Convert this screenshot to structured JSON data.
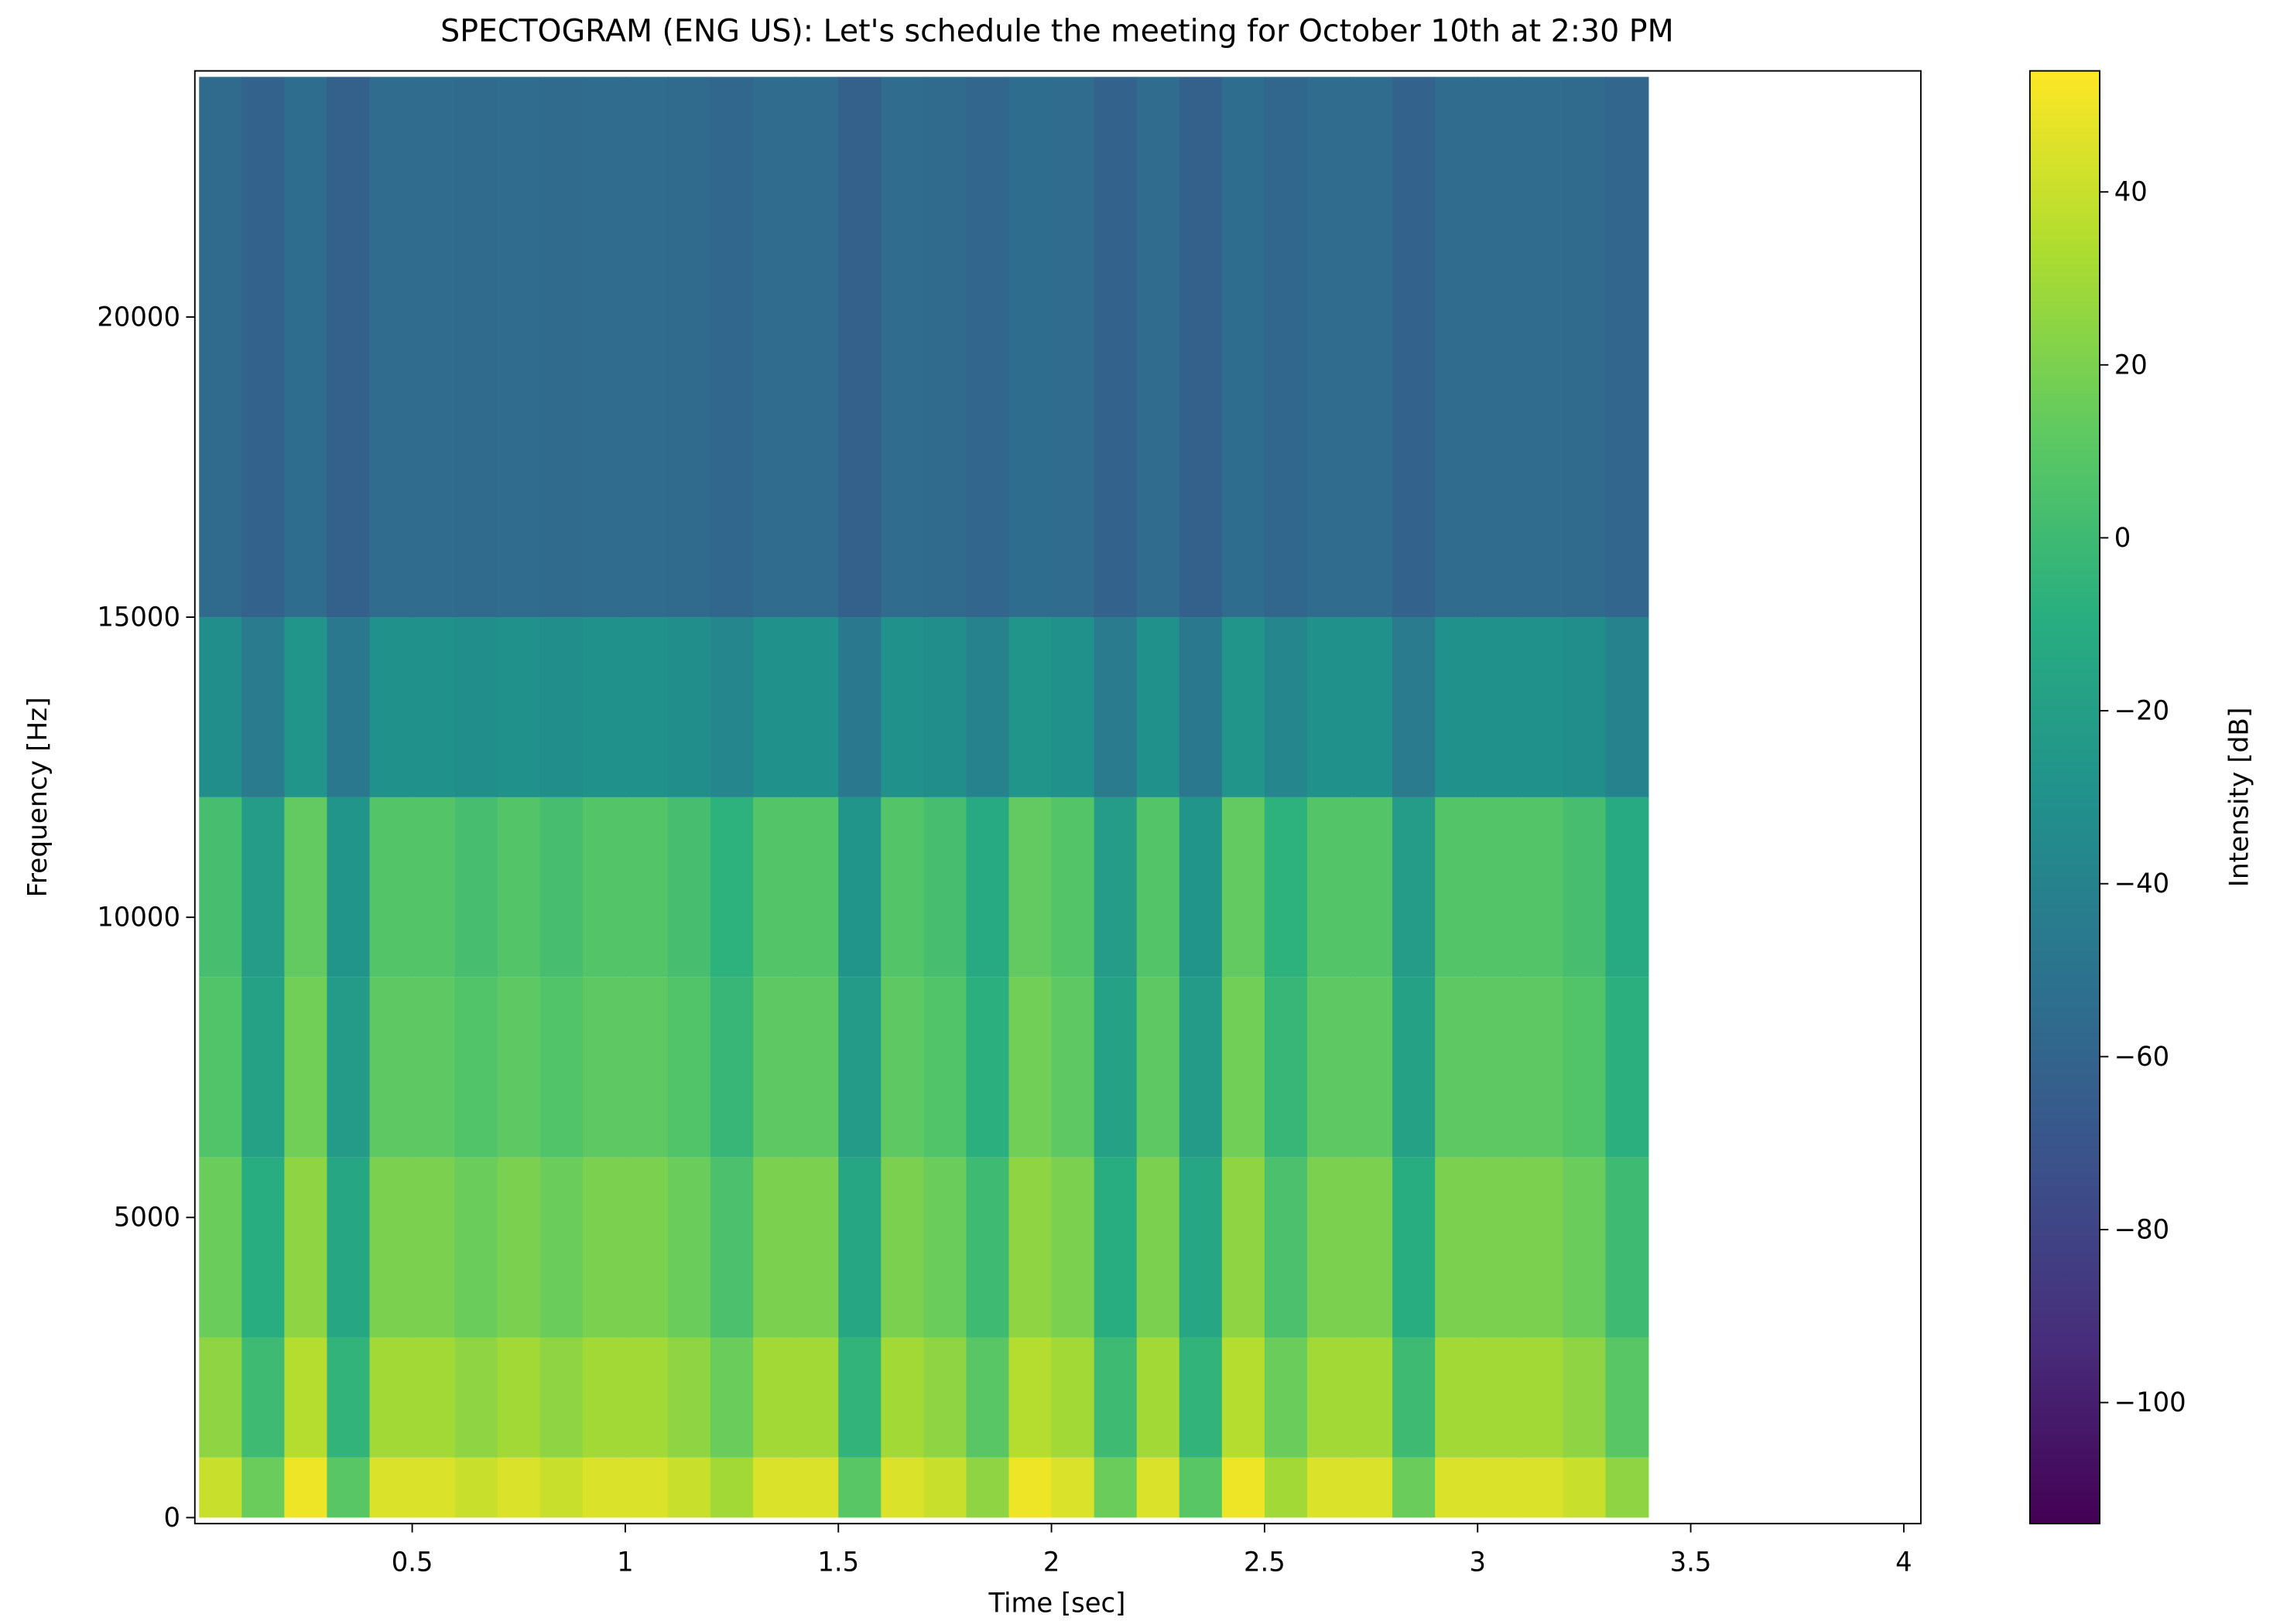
{
  "chart_data": {
    "type": "spectrogram",
    "title": "SPECTOGRAM (ENG US): Let's schedule the meeting for October 10th at 2:30 PM",
    "x_label": "Time [sec]",
    "y_label": "Frequency [Hz]",
    "colorbar_label": "Intensity [dB]",
    "colormap": "viridis",
    "xlim": [
      -0.01,
      4.04
    ],
    "ylim": [
      -100,
      24100
    ],
    "xticks": [
      0.5,
      1.0,
      1.5,
      2.0,
      2.5,
      3.0,
      3.5,
      4.0
    ],
    "yticks": [
      0,
      5000,
      10000,
      15000,
      20000
    ],
    "clim": [
      -114,
      54
    ],
    "cticks": [
      {
        "value": -100,
        "label": "−100"
      },
      {
        "value": -80,
        "label": "−80"
      },
      {
        "value": -60,
        "label": "−60"
      },
      {
        "value": -40,
        "label": "−40"
      },
      {
        "value": -20,
        "label": "−20"
      },
      0,
      20,
      40
    ],
    "x_edges": [
      0,
      0.1,
      0.2,
      0.3,
      0.4,
      0.5,
      0.6,
      0.7,
      0.8,
      0.9,
      1.0,
      1.1,
      1.2,
      1.3,
      1.4,
      1.5,
      1.6,
      1.7,
      1.8,
      1.9,
      2.0,
      2.1,
      2.2,
      2.3,
      2.4,
      2.5,
      2.6,
      2.7,
      2.8,
      2.9,
      3.0,
      3.1,
      3.2,
      3.3,
      3.4
    ],
    "y_edges": [
      0,
      1000,
      3000,
      6000,
      9000,
      12000,
      15000,
      24000
    ],
    "values": [
      [
        40,
        15,
        50,
        10,
        45,
        45,
        40,
        45,
        40,
        45,
        45,
        40,
        30,
        45,
        45,
        10,
        45,
        40,
        25,
        50,
        45,
        15,
        45,
        10,
        50,
        30,
        45,
        45,
        15,
        45,
        45,
        45,
        40,
        25
      ],
      [
        25,
        0,
        35,
        -5,
        30,
        30,
        25,
        30,
        25,
        30,
        30,
        25,
        15,
        30,
        30,
        -5,
        30,
        25,
        10,
        35,
        30,
        0,
        30,
        -5,
        35,
        15,
        30,
        30,
        0,
        30,
        30,
        30,
        25,
        10
      ],
      [
        15,
        -10,
        25,
        -15,
        20,
        20,
        15,
        20,
        15,
        20,
        20,
        15,
        5,
        20,
        20,
        -15,
        20,
        15,
        0,
        25,
        20,
        -10,
        20,
        -15,
        25,
        5,
        20,
        20,
        -10,
        20,
        20,
        20,
        15,
        0
      ],
      [
        7,
        -18,
        17,
        -23,
        12,
        12,
        7,
        12,
        7,
        12,
        12,
        7,
        -3,
        12,
        12,
        -23,
        12,
        7,
        -8,
        17,
        12,
        -18,
        12,
        -23,
        17,
        -3,
        12,
        12,
        -18,
        12,
        12,
        12,
        7,
        -8
      ],
      [
        3,
        -22,
        13,
        -27,
        8,
        8,
        3,
        8,
        3,
        8,
        8,
        3,
        -7,
        8,
        8,
        -27,
        8,
        3,
        -12,
        13,
        8,
        -22,
        8,
        -27,
        13,
        -7,
        8,
        8,
        -22,
        8,
        8,
        8,
        3,
        -12
      ],
      [
        -32,
        -45,
        -27,
        -47,
        -30,
        -30,
        -32,
        -30,
        -32,
        -30,
        -30,
        -32,
        -37,
        -30,
        -30,
        -47,
        -30,
        -32,
        -40,
        -27,
        -30,
        -45,
        -30,
        -47,
        -27,
        -37,
        -30,
        -30,
        -45,
        -30,
        -30,
        -30,
        -32,
        -40
      ],
      [
        -56,
        -61,
        -54,
        -62,
        -55,
        -55,
        -56,
        -55,
        -56,
        -55,
        -55,
        -56,
        -58,
        -55,
        -55,
        -62,
        -55,
        -56,
        -59,
        -54,
        -55,
        -61,
        -55,
        -62,
        -54,
        -58,
        -55,
        -55,
        -61,
        -55,
        -55,
        -55,
        -56,
        -59
      ]
    ]
  }
}
